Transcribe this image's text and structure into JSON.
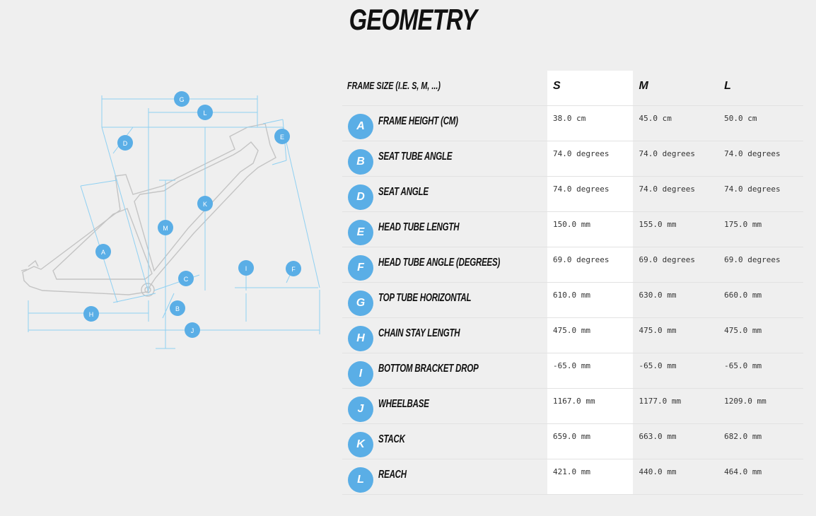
{
  "page": {
    "title": "GEOMETRY"
  },
  "diagram": {
    "labels": [
      "G",
      "L",
      "D",
      "E",
      "K",
      "M",
      "A",
      "C",
      "I",
      "F",
      "B",
      "H",
      "J"
    ]
  },
  "table": {
    "header": {
      "label": "FRAME SIZE (I.E. S, M, ...)",
      "sizes": [
        "S",
        "M",
        "L"
      ]
    },
    "rows": [
      {
        "letter": "A",
        "name": "FRAME HEIGHT (CM)",
        "values": [
          "38.0 cm",
          "45.0 cm",
          "50.0 cm"
        ]
      },
      {
        "letter": "B",
        "name": "SEAT TUBE ANGLE",
        "values": [
          "74.0 degrees",
          "74.0 degrees",
          "74.0 degrees"
        ]
      },
      {
        "letter": "D",
        "name": "SEAT ANGLE",
        "values": [
          "74.0 degrees",
          "74.0 degrees",
          "74.0 degrees"
        ]
      },
      {
        "letter": "E",
        "name": "HEAD TUBE LENGTH",
        "values": [
          "150.0 mm",
          "155.0 mm",
          "175.0 mm"
        ]
      },
      {
        "letter": "F",
        "name": "HEAD TUBE ANGLE (DEGREES)",
        "values": [
          "69.0 degrees",
          "69.0 degrees",
          "69.0 degrees"
        ]
      },
      {
        "letter": "G",
        "name": "TOP TUBE HORIZONTAL",
        "values": [
          "610.0 mm",
          "630.0 mm",
          "660.0 mm"
        ]
      },
      {
        "letter": "H",
        "name": "CHAIN STAY LENGTH",
        "values": [
          "475.0 mm",
          "475.0 mm",
          "475.0 mm"
        ]
      },
      {
        "letter": "I",
        "name": "BOTTOM BRACKET DROP",
        "values": [
          "-65.0 mm",
          "-65.0 mm",
          "-65.0 mm"
        ]
      },
      {
        "letter": "J",
        "name": "WHEELBASE",
        "values": [
          "1167.0 mm",
          "1177.0 mm",
          "1209.0 mm"
        ]
      },
      {
        "letter": "K",
        "name": "STACK",
        "values": [
          "659.0 mm",
          "663.0 mm",
          "682.0 mm"
        ]
      },
      {
        "letter": "L",
        "name": "REACH",
        "values": [
          "421.0 mm",
          "440.0 mm",
          "464.0 mm"
        ]
      }
    ]
  },
  "colors": {
    "accent": "#5aaee6",
    "dimension_line": "#8fd0f2",
    "frame_line": "#c4c4c4",
    "background": "#efefef"
  }
}
